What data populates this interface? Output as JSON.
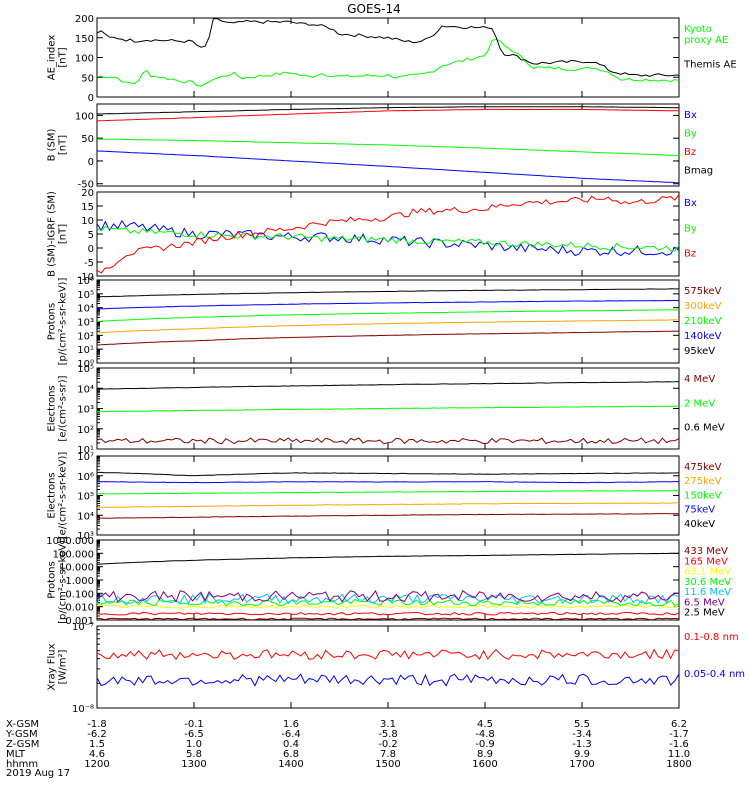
{
  "title": "GOES-14",
  "date_label": "2019 Aug 17",
  "chart_data": [
    {
      "id": "ae",
      "type": "line",
      "ylabel_lines": [
        "AE_index",
        "[nT]"
      ],
      "ylim": [
        0,
        200
      ],
      "yscale": "linear",
      "yticks": [
        0,
        50,
        100,
        150,
        200
      ],
      "series": [
        {
          "name": "Kyoto proxy AE",
          "label_lines": [
            "Kyoto",
            "proxy AE"
          ],
          "color": "#00ff00",
          "x": [
            1200,
            1210,
            1220,
            1230,
            1240,
            1245,
            1250,
            1255,
            1300,
            1305,
            1310,
            1315,
            1320,
            1330,
            1340,
            1350,
            1400,
            1410,
            1420,
            1430,
            1440,
            1450,
            1500,
            1510,
            1520,
            1530,
            1540,
            1550,
            1555,
            1600,
            1605,
            1610,
            1620,
            1630,
            1640,
            1650,
            1700,
            1710,
            1720,
            1730,
            1740,
            1750,
            1800
          ],
          "y": [
            52,
            52,
            50,
            35,
            35,
            50,
            70,
            55,
            35,
            30,
            25,
            40,
            45,
            52,
            60,
            48,
            62,
            55,
            50,
            60,
            55,
            52,
            55,
            50,
            52,
            55,
            60,
            70,
            80,
            105,
            130,
            150,
            130,
            115,
            95,
            75,
            70,
            75,
            70,
            60,
            45,
            45,
            42
          ]
        },
        {
          "name": "Themis AE",
          "label_lines": [
            "Themis AE"
          ],
          "color": "#000000",
          "x": [
            1200,
            1205,
            1210,
            1220,
            1230,
            1240,
            1250,
            1300,
            1305,
            1310,
            1315,
            1320,
            1325,
            1330,
            1340,
            1350,
            1400,
            1410,
            1420,
            1430,
            1440,
            1450,
            1500,
            1510,
            1520,
            1530,
            1540,
            1550,
            1555,
            1600,
            1605,
            1610,
            1615,
            1620,
            1630,
            1640,
            1650,
            1700,
            1710,
            1720,
            1730,
            1740,
            1750,
            1800
          ],
          "y": [
            160,
            170,
            150,
            150,
            145,
            142,
            145,
            140,
            125,
            120,
            145,
            195,
            195,
            192,
            185,
            190,
            190,
            185,
            185,
            180,
            175,
            160,
            150,
            145,
            140,
            140,
            145,
            165,
            180,
            175,
            180,
            165,
            125,
            110,
            105,
            95,
            85,
            90,
            90,
            80,
            65,
            60,
            55,
            55
          ]
        }
      ]
    },
    {
      "id": "bsm",
      "type": "line",
      "ylabel_lines": [
        "B (SM)",
        "[nT]"
      ],
      "ylim": [
        -55,
        125
      ],
      "yscale": "linear",
      "yticks": [
        -50,
        0,
        50,
        100
      ],
      "series": [
        {
          "name": "Bx",
          "label_lines": [
            "Bx"
          ],
          "color": "#0000ff",
          "x": [
            1200,
            1300,
            1400,
            1500,
            1600,
            1700,
            1800
          ],
          "y": [
            22,
            12,
            0,
            -12,
            -25,
            -38,
            -48
          ]
        },
        {
          "name": "By",
          "label_lines": [
            "By"
          ],
          "color": "#00ff00",
          "x": [
            1200,
            1300,
            1400,
            1500,
            1600,
            1700,
            1800
          ],
          "y": [
            48,
            45,
            40,
            35,
            28,
            20,
            12
          ]
        },
        {
          "name": "Bz",
          "label_lines": [
            "Bz"
          ],
          "color": "#ff0000",
          "x": [
            1200,
            1300,
            1400,
            1500,
            1600,
            1700,
            1800
          ],
          "y": [
            88,
            95,
            103,
            110,
            113,
            113,
            110
          ]
        },
        {
          "name": "Bmag",
          "label_lines": [
            "Bmag"
          ],
          "color": "#000000",
          "x": [
            1200,
            1300,
            1400,
            1500,
            1600,
            1700,
            1800
          ],
          "y": [
            103,
            108,
            113,
            117,
            119,
            119,
            117
          ]
        }
      ]
    },
    {
      "id": "bdiff",
      "type": "line",
      "ylabel_lines": [
        "B (SM)-IGRF (SM)",
        "[nT]"
      ],
      "ylim": [
        -10,
        20
      ],
      "yscale": "linear",
      "yticks": [
        -10,
        -5,
        0,
        5,
        10,
        15,
        20
      ],
      "series": [
        {
          "name": "Bx",
          "label_lines": [
            "Bx"
          ],
          "color": "#0000ff",
          "noise": 0.6,
          "x": [
            1200,
            1230,
            1300,
            1330,
            1400,
            1430,
            1500,
            1530,
            1600,
            1630,
            1700,
            1730,
            1800
          ],
          "y": [
            8,
            8,
            5,
            5,
            4,
            4,
            3,
            2,
            1,
            0,
            -1,
            -1,
            -1
          ]
        },
        {
          "name": "By",
          "label_lines": [
            "By"
          ],
          "color": "#00ff00",
          "noise": 0.4,
          "x": [
            1200,
            1230,
            1300,
            1330,
            1400,
            1430,
            1500,
            1530,
            1600,
            1630,
            1700,
            1730,
            1800
          ],
          "y": [
            7,
            6,
            5,
            4.5,
            4,
            3.5,
            3,
            2.5,
            2,
            1.5,
            1,
            0.5,
            0
          ]
        },
        {
          "name": "Bz",
          "label_lines": [
            "Bz"
          ],
          "color": "#ff0000",
          "noise": 0.4,
          "x": [
            1200,
            1215,
            1230,
            1300,
            1330,
            1400,
            1430,
            1500,
            1530,
            1600,
            1630,
            1700,
            1730,
            1745,
            1800
          ],
          "y": [
            -9,
            -6,
            -2,
            2,
            4,
            7,
            9,
            11,
            13,
            14,
            16,
            17,
            18,
            16,
            18
          ]
        }
      ]
    },
    {
      "id": "protons1",
      "type": "line",
      "ylabel_lines": [
        "Protons",
        "[p/(cm²-s-sr-keV)]"
      ],
      "ylim": [
        1,
        1000000
      ],
      "yscale": "log",
      "yticks": [
        1,
        10,
        100,
        1000,
        10000,
        100000,
        1000000
      ],
      "series": [
        {
          "name": "575keV",
          "label_lines": [
            "575keV"
          ],
          "color": "#800000",
          "x": [
            1200,
            1300,
            1400,
            1500,
            1600,
            1700,
            1800
          ],
          "y": [
            20,
            40,
            70,
            100,
            130,
            160,
            200
          ]
        },
        {
          "name": "300keV",
          "label_lines": [
            "300keV"
          ],
          "color": "#ffa500",
          "x": [
            1200,
            1300,
            1400,
            1500,
            1600,
            1700,
            1800
          ],
          "y": [
            150,
            300,
            500,
            700,
            900,
            1100,
            1300
          ]
        },
        {
          "name": "210keV",
          "label_lines": [
            "210keV"
          ],
          "color": "#00ff00",
          "x": [
            1200,
            1300,
            1400,
            1500,
            1600,
            1700,
            1800
          ],
          "y": [
            1000,
            2000,
            3000,
            4000,
            5000,
            6000,
            7000
          ]
        },
        {
          "name": "140keV",
          "label_lines": [
            "140keV"
          ],
          "color": "#0000ff",
          "x": [
            1200,
            1300,
            1400,
            1500,
            1600,
            1700,
            1800
          ],
          "y": [
            8000,
            13000,
            18000,
            22000,
            26000,
            30000,
            33000
          ]
        },
        {
          "name": "95keV",
          "label_lines": [
            "95keV"
          ],
          "color": "#000000",
          "x": [
            1200,
            1300,
            1400,
            1500,
            1600,
            1700,
            1800
          ],
          "y": [
            60000,
            90000,
            120000,
            150000,
            180000,
            200000,
            230000
          ]
        }
      ]
    },
    {
      "id": "electrons1",
      "type": "line",
      "ylabel_lines": [
        "Electrons",
        "[e/(cm²-s-sr)]"
      ],
      "ylim": [
        10,
        100000
      ],
      "yscale": "log",
      "yticks": [
        10,
        100,
        1000,
        10000,
        100000
      ],
      "series": [
        {
          "name": "4 MeV",
          "label_lines": [
            "4 MeV"
          ],
          "color": "#800000",
          "noise": 0.12,
          "x": [
            1200,
            1800
          ],
          "y": [
            25,
            25
          ]
        },
        {
          "name": "2 MeV",
          "label_lines": [
            "2 MeV"
          ],
          "color": "#00ff00",
          "x": [
            1200,
            1300,
            1400,
            1500,
            1600,
            1700,
            1800
          ],
          "y": [
            700,
            800,
            900,
            1000,
            1100,
            1200,
            1300
          ]
        },
        {
          "name": "0.6 MeV",
          "label_lines": [
            "0.6 MeV"
          ],
          "color": "#000000",
          "x": [
            1200,
            1300,
            1400,
            1500,
            1600,
            1700,
            1800
          ],
          "y": [
            9000,
            11000,
            13000,
            15000,
            17000,
            19000,
            21000
          ]
        }
      ]
    },
    {
      "id": "electrons2",
      "type": "line",
      "ylabel_lines": [
        "Electrons",
        "[e/(cm²-s-sr-keV)]"
      ],
      "ylim": [
        1000,
        10000000
      ],
      "yscale": "log",
      "yticks": [
        1000,
        10000,
        100000,
        1000000,
        10000000
      ],
      "series": [
        {
          "name": "475keV",
          "label_lines": [
            "475keV"
          ],
          "color": "#800000",
          "x": [
            1200,
            1300,
            1400,
            1500,
            1600,
            1700,
            1800
          ],
          "y": [
            7000,
            8000,
            9000,
            10000,
            11000,
            11500,
            12000
          ]
        },
        {
          "name": "275keV",
          "label_lines": [
            "275keV"
          ],
          "color": "#ffa500",
          "x": [
            1200,
            1300,
            1400,
            1500,
            1600,
            1700,
            1800
          ],
          "y": [
            25000,
            28000,
            32000,
            35000,
            38000,
            40000,
            42000
          ]
        },
        {
          "name": "150keV",
          "label_lines": [
            "150keV"
          ],
          "color": "#00ff00",
          "x": [
            1200,
            1300,
            1400,
            1500,
            1600,
            1700,
            1800
          ],
          "y": [
            120000,
            130000,
            140000,
            150000,
            160000,
            170000,
            175000
          ]
        },
        {
          "name": "75keV",
          "label_lines": [
            "75keV"
          ],
          "color": "#0000ff",
          "x": [
            1200,
            1300,
            1400,
            1500,
            1600,
            1700,
            1800
          ],
          "y": [
            500000,
            450000,
            500000,
            480000,
            500000,
            450000,
            500000
          ]
        },
        {
          "name": "40keV",
          "label_lines": [
            "40keV"
          ],
          "color": "#000000",
          "x": [
            1200,
            1300,
            1400,
            1500,
            1600,
            1700,
            1800
          ],
          "y": [
            1500000,
            1000000,
            1400000,
            1300000,
            1200000,
            1300000,
            1400000
          ]
        }
      ]
    },
    {
      "id": "protons2",
      "type": "line",
      "ylabel_lines": [
        "Protons",
        "[p/(cm²-s-sr-keV)]"
      ],
      "ylim": [
        0.001,
        1000
      ],
      "yscale": "log",
      "ytick_labels": [
        "0.001",
        "0.010",
        "0.100",
        "1.000",
        "10.000",
        "100.000",
        "1000.000"
      ],
      "yticks": [
        0.001,
        0.01,
        0.1,
        1,
        10,
        100,
        1000
      ],
      "series": [
        {
          "name": "433 MeV",
          "label_lines": [
            "433 MeV"
          ],
          "color": "#800000",
          "noise": 0.05,
          "x": [
            1200,
            1800
          ],
          "y": [
            0.0012,
            0.0012
          ]
        },
        {
          "name": "165 MeV",
          "label_lines": [
            "165 MeV"
          ],
          "color": "#ff0000",
          "noise": 0.08,
          "x": [
            1200,
            1800
          ],
          "y": [
            0.003,
            0.003
          ]
        },
        {
          "name": "63.1 MeV",
          "label_lines": [
            "63.1 MeV"
          ],
          "color": "#ffff00",
          "noise": 0.1,
          "x": [
            1200,
            1800
          ],
          "y": [
            0.01,
            0.01
          ]
        },
        {
          "name": "30.6 MeV",
          "label_lines": [
            "30.6 MeV"
          ],
          "color": "#00ff00",
          "noise": 0.2,
          "x": [
            1200,
            1800
          ],
          "y": [
            0.02,
            0.02
          ]
        },
        {
          "name": "11.6 MeV",
          "label_lines": [
            "11.6 MeV"
          ],
          "color": "#00c0ff",
          "noise": 0.3,
          "x": [
            1200,
            1800
          ],
          "y": [
            0.04,
            0.04
          ]
        },
        {
          "name": "6.5 MeV",
          "label_lines": [
            "6.5 MeV"
          ],
          "color": "#800080",
          "noise": 0.35,
          "x": [
            1200,
            1800
          ],
          "y": [
            0.06,
            0.06
          ]
        },
        {
          "name": "2.5 MeV",
          "label_lines": [
            "2.5 MeV"
          ],
          "color": "#000000",
          "x": [
            1200,
            1300,
            1400,
            1500,
            1600,
            1700,
            1800
          ],
          "y": [
            15,
            30,
            45,
            60,
            70,
            85,
            100
          ]
        }
      ]
    },
    {
      "id": "xray",
      "type": "line",
      "ylabel_lines": [
        "Xray Flux",
        "[W/m²]"
      ],
      "ylim": [
        1e-08,
        1e-07
      ],
      "yscale": "log",
      "yticks": [
        1e-08,
        1e-07
      ],
      "ytick_labels": [
        "10⁻⁸",
        "10⁻⁷"
      ],
      "series": [
        {
          "name": "0.1-0.8 nm",
          "label_lines": [
            "0.1-0.8 nm"
          ],
          "color": "#ff0000",
          "noise": 0.05,
          "x": [
            1200,
            1800
          ],
          "y": [
            4.5e-08,
            4.5e-08
          ]
        },
        {
          "name": "0.05-0.4 nm",
          "label_lines": [
            "0.05-0.4 nm"
          ],
          "color": "#0000ff",
          "noise": 0.06,
          "x": [
            1200,
            1800
          ],
          "y": [
            2.2e-08,
            2.2e-08
          ]
        }
      ]
    }
  ],
  "x_axis": {
    "rows": [
      {
        "label": "X-GSM",
        "values": [
          "-1.8",
          "-0.1",
          "1.6",
          "3.1",
          "4.5",
          "5.5",
          "6.2"
        ]
      },
      {
        "label": "Y-GSM",
        "values": [
          "-6.2",
          "-6.5",
          "-6.4",
          "-5.8",
          "-4.8",
          "-3.4",
          "-1.7"
        ]
      },
      {
        "label": "Z-GSM",
        "values": [
          "1.5",
          "1.0",
          "0.4",
          "-0.2",
          "-0.9",
          "-1.3",
          "-1.6"
        ]
      },
      {
        "label": "MLT",
        "values": [
          "4.6",
          "5.8",
          "6.8",
          "7.8",
          "8.9",
          "9.9",
          "11.0"
        ]
      },
      {
        "label": "hhmm",
        "values": [
          "1200",
          "1300",
          "1400",
          "1500",
          "1600",
          "1700",
          "1800"
        ]
      }
    ],
    "tick_x": [
      1200,
      1300,
      1400,
      1500,
      1600,
      1700,
      1800
    ],
    "range": [
      1200,
      1800
    ]
  }
}
